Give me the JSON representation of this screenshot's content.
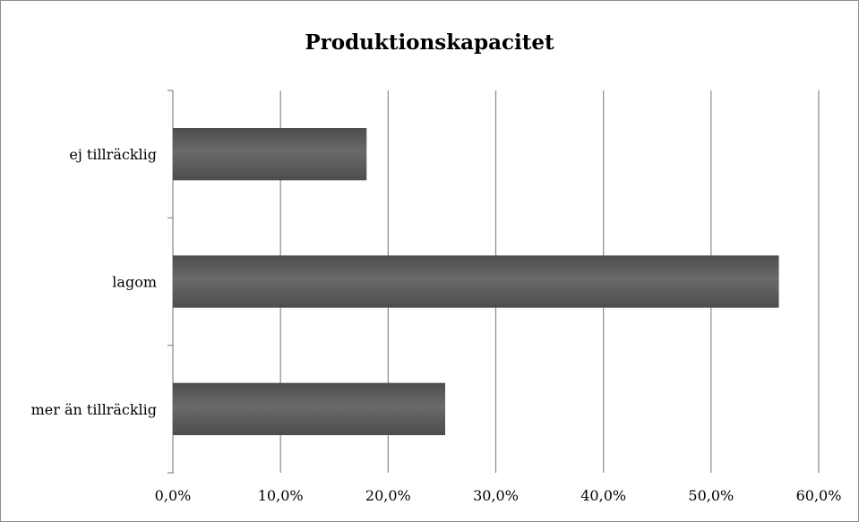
{
  "chart_data": {
    "type": "bar",
    "orientation": "horizontal",
    "title": "Produktionskapacitet",
    "categories": [
      "ej tillräcklig",
      "lagom",
      "mer än tillräcklig"
    ],
    "values": [
      0.18,
      0.563,
      0.253
    ],
    "xlim": [
      0,
      0.6
    ],
    "xticks": [
      0,
      0.1,
      0.2,
      0.3,
      0.4,
      0.5,
      0.6
    ],
    "xtick_labels": [
      "0,0%",
      "10,0%",
      "20,0%",
      "30,0%",
      "40,0%",
      "50,0%",
      "60,0%"
    ],
    "xlabel": "",
    "ylabel": "",
    "grid": "vertical",
    "legend": "none",
    "bar_color": "#4d4d4d",
    "bar_highlight_color": "#6a6a6a"
  }
}
